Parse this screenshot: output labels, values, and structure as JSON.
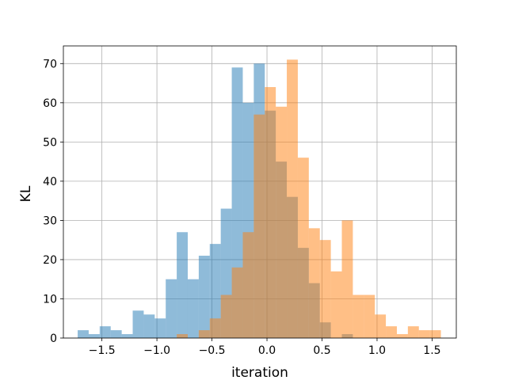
{
  "chart_data": {
    "type": "histogram",
    "xlabel": "iteration",
    "ylabel": "KL",
    "xlim": [
      -1.85,
      1.72
    ],
    "ylim": [
      0,
      74.5
    ],
    "grid": true,
    "x_ticks": [
      -1.5,
      -1.0,
      -0.5,
      0.0,
      0.5,
      1.0,
      1.5
    ],
    "x_tick_labels": [
      "−1.5",
      "−1.0",
      "−0.5",
      "0.0",
      "0.5",
      "1.0",
      "1.5"
    ],
    "y_ticks": [
      0,
      10,
      20,
      30,
      40,
      50,
      60,
      70
    ],
    "y_tick_labels": [
      "0",
      "10",
      "20",
      "30",
      "40",
      "50",
      "60",
      "70"
    ],
    "series": [
      {
        "color": "#1f77b4",
        "alpha": 0.5,
        "bin_start": -1.72,
        "bin_width": 0.1,
        "counts": [
          2,
          1,
          3,
          2,
          1,
          7,
          6,
          5,
          15,
          27,
          15,
          21,
          24,
          33,
          69,
          60,
          70,
          58,
          45,
          36,
          23,
          14,
          4,
          0,
          1
        ]
      },
      {
        "color": "#ff7f0e",
        "alpha": 0.5,
        "bin_start": -0.82,
        "bin_width": 0.1,
        "counts": [
          1,
          0,
          2,
          5,
          11,
          18,
          27,
          57,
          64,
          59,
          71,
          46,
          28,
          25,
          17,
          30,
          11,
          11,
          6,
          3,
          1,
          3,
          2,
          2
        ]
      }
    ]
  }
}
